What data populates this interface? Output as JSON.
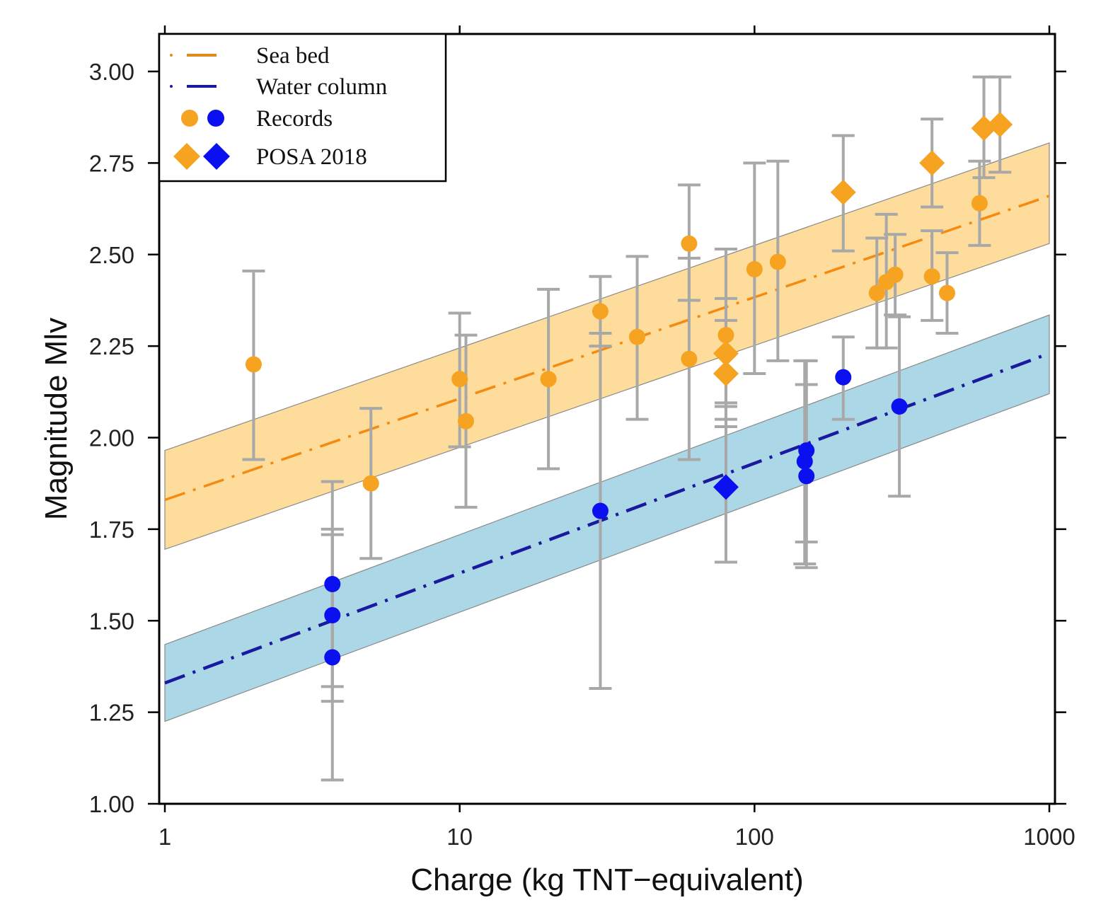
{
  "chart_data": {
    "type": "scatter",
    "xlabel": "Charge (kg TNT−equivalent)",
    "ylabel": "Magnitude Mlv",
    "xscale": "log",
    "xlim": [
      1,
      1000
    ],
    "ylim": [
      1.0,
      3.1
    ],
    "x_ticks": [
      {
        "value": 1,
        "label": "1"
      },
      {
        "value": 10,
        "label": "10"
      },
      {
        "value": 100,
        "label": "100"
      },
      {
        "value": 1000,
        "label": "1000"
      }
    ],
    "y_ticks": [
      {
        "value": 1.0,
        "label": "1.00"
      },
      {
        "value": 1.25,
        "label": "1.25"
      },
      {
        "value": 1.5,
        "label": "1.50"
      },
      {
        "value": 1.75,
        "label": "1.75"
      },
      {
        "value": 2.0,
        "label": "2.00"
      },
      {
        "value": 2.25,
        "label": "2.25"
      },
      {
        "value": 2.5,
        "label": "2.50"
      },
      {
        "value": 2.75,
        "label": "2.75"
      },
      {
        "value": 3.0,
        "label": "3.00"
      }
    ],
    "grid": false,
    "legend_position": "top-left",
    "legend": [
      {
        "label": "Sea bed",
        "kind": "line",
        "color": "#e08a1e"
      },
      {
        "label": "Water column",
        "kind": "line",
        "color": "#1a1aa0"
      },
      {
        "label": "Records",
        "kind": "circles",
        "colors": [
          "#f5a320",
          "#0a10f0"
        ]
      },
      {
        "label": "POSA 2018",
        "kind": "diamonds",
        "colors": [
          "#f5a320",
          "#0a10f0"
        ]
      }
    ],
    "colors": {
      "seabed": "#f5a320",
      "seabed_line": "#f58a10",
      "seabed_band": "#fddc9c",
      "water": "#0a10f0",
      "water_line": "#1a1aa0",
      "water_band": "#acd7e6",
      "errorbar": "#a8a8a8"
    },
    "fits": [
      {
        "group": "seabed",
        "x": [
          1,
          1000
        ],
        "y": [
          1.83,
          2.66
        ],
        "band_lower": [
          1.695,
          2.53
        ],
        "band_upper": [
          1.965,
          2.805
        ]
      },
      {
        "group": "water",
        "x": [
          1,
          1000
        ],
        "y": [
          1.33,
          2.23
        ],
        "band_lower": [
          1.225,
          2.12
        ],
        "band_upper": [
          1.435,
          2.335
        ]
      }
    ],
    "series": [
      {
        "name": "Records",
        "group": "seabed",
        "marker": "circle",
        "points": [
          {
            "x": 2,
            "y": 2.2,
            "ylo": 1.94,
            "yhi": 2.455
          },
          {
            "x": 5,
            "y": 1.875,
            "ylo": 1.67,
            "yhi": 2.08
          },
          {
            "x": 10,
            "y": 2.16,
            "ylo": 1.975,
            "yhi": 2.34
          },
          {
            "x": 10.5,
            "y": 2.045,
            "ylo": 1.81,
            "yhi": 2.28
          },
          {
            "x": 20,
            "y": 2.16,
            "ylo": 1.915,
            "yhi": 2.405
          },
          {
            "x": 30,
            "y": 2.345,
            "ylo": 2.25,
            "yhi": 2.44
          },
          {
            "x": 40,
            "y": 2.275,
            "ylo": 2.05,
            "yhi": 2.495
          },
          {
            "x": 60,
            "y": 2.53,
            "ylo": 2.375,
            "yhi": 2.69
          },
          {
            "x": 60,
            "y": 2.215,
            "ylo": 1.94,
            "yhi": 2.49
          },
          {
            "x": 80,
            "y": 2.28,
            "ylo": 2.05,
            "yhi": 2.515
          },
          {
            "x": 100,
            "y": 2.46,
            "ylo": 2.175,
            "yhi": 2.75
          },
          {
            "x": 120,
            "y": 2.48,
            "ylo": 2.21,
            "yhi": 2.755
          },
          {
            "x": 260,
            "y": 2.395,
            "ylo": 2.245,
            "yhi": 2.545
          },
          {
            "x": 280,
            "y": 2.425,
            "ylo": 2.245,
            "yhi": 2.61
          },
          {
            "x": 300,
            "y": 2.445,
            "ylo": 2.335,
            "yhi": 2.555
          },
          {
            "x": 400,
            "y": 2.44,
            "ylo": 2.32,
            "yhi": 2.565
          },
          {
            "x": 450,
            "y": 2.395,
            "ylo": 2.285,
            "yhi": 2.505
          },
          {
            "x": 580,
            "y": 2.64,
            "ylo": 2.525,
            "yhi": 2.755
          }
        ]
      },
      {
        "name": "POSA 2018",
        "group": "seabed",
        "marker": "diamond",
        "points": [
          {
            "x": 80,
            "y": 2.23,
            "ylo": 2.085,
            "yhi": 2.38
          },
          {
            "x": 80,
            "y": 2.175,
            "ylo": 2.03,
            "yhi": 2.32
          },
          {
            "x": 200,
            "y": 2.67,
            "ylo": 2.51,
            "yhi": 2.825
          },
          {
            "x": 400,
            "y": 2.75,
            "ylo": 2.63,
            "yhi": 2.87
          },
          {
            "x": 600,
            "y": 2.845,
            "ylo": 2.71,
            "yhi": 2.985
          },
          {
            "x": 680,
            "y": 2.855,
            "ylo": 2.725,
            "yhi": 2.985
          }
        ]
      },
      {
        "name": "Records",
        "group": "water",
        "marker": "circle",
        "points": [
          {
            "x": 3.7,
            "y": 1.6,
            "ylo": 1.32,
            "yhi": 1.88
          },
          {
            "x": 3.7,
            "y": 1.515,
            "ylo": 1.28,
            "yhi": 1.75
          },
          {
            "x": 3.7,
            "y": 1.4,
            "ylo": 1.065,
            "yhi": 1.735
          },
          {
            "x": 30,
            "y": 1.8,
            "ylo": 1.315,
            "yhi": 2.285
          },
          {
            "x": 150,
            "y": 1.965,
            "ylo": 1.715,
            "yhi": 2.21
          },
          {
            "x": 148,
            "y": 1.935,
            "ylo": 1.655,
            "yhi": 2.21
          },
          {
            "x": 150,
            "y": 1.895,
            "ylo": 1.645,
            "yhi": 2.145
          },
          {
            "x": 200,
            "y": 2.165,
            "ylo": 2.05,
            "yhi": 2.275
          },
          {
            "x": 310,
            "y": 2.085,
            "ylo": 1.84,
            "yhi": 2.33
          }
        ]
      },
      {
        "name": "POSA 2018",
        "group": "water",
        "marker": "diamond",
        "points": [
          {
            "x": 80,
            "y": 1.865,
            "ylo": 1.66,
            "yhi": 2.095
          }
        ]
      }
    ]
  }
}
